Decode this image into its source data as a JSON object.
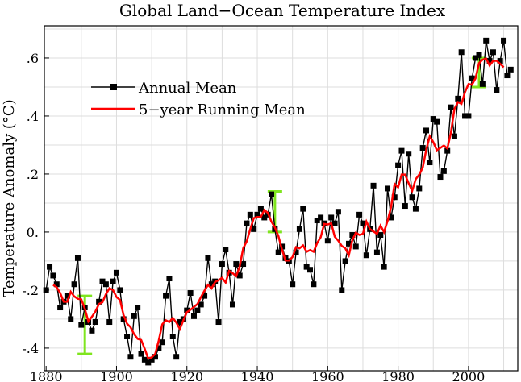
{
  "chart_data": {
    "type": "line",
    "title": "Global Land−Ocean Temperature Index",
    "xlabel": "",
    "ylabel": "Temperature Anomaly (°C)",
    "xlim": [
      1879.5,
      2014
    ],
    "ylim": [
      -0.478,
      0.711
    ],
    "grid": true,
    "legend_position": "top-left",
    "x_ticks": [
      1880,
      1900,
      1920,
      1940,
      1960,
      1980,
      2000
    ],
    "x_tick_labels": [
      "1880",
      "1900",
      "1920",
      "1940",
      "1960",
      "1980",
      "2000"
    ],
    "y_ticks": [
      0.6,
      0.4,
      0.2,
      0.0,
      -0.2,
      -0.4
    ],
    "y_tick_labels": [
      ".6",
      ".4",
      ".2",
      "0.",
      "-.2",
      "-.4"
    ],
    "series": [
      {
        "name": "Annual Mean",
        "color": "#000000",
        "marker": "square",
        "x_start": 1880,
        "values": [
          -0.2,
          -0.12,
          -0.15,
          -0.18,
          -0.26,
          -0.24,
          -0.22,
          -0.3,
          -0.18,
          -0.09,
          -0.32,
          -0.26,
          -0.31,
          -0.34,
          -0.31,
          -0.24,
          -0.17,
          -0.18,
          -0.31,
          -0.17,
          -0.14,
          -0.2,
          -0.3,
          -0.36,
          -0.43,
          -0.29,
          -0.26,
          -0.42,
          -0.44,
          -0.45,
          -0.44,
          -0.43,
          -0.4,
          -0.38,
          -0.22,
          -0.16,
          -0.36,
          -0.43,
          -0.31,
          -0.3,
          -0.27,
          -0.21,
          -0.29,
          -0.27,
          -0.25,
          -0.22,
          -0.09,
          -0.18,
          -0.17,
          -0.31,
          -0.11,
          -0.06,
          -0.14,
          -0.25,
          -0.11,
          -0.15,
          -0.11,
          0.03,
          0.06,
          0.01,
          0.06,
          0.08,
          0.05,
          0.06,
          0.13,
          0.01,
          -0.07,
          -0.05,
          -0.09,
          -0.1,
          -0.18,
          -0.07,
          0.01,
          0.08,
          -0.12,
          -0.13,
          -0.18,
          0.04,
          0.05,
          0.03,
          -0.03,
          0.05,
          0.03,
          0.07,
          -0.2,
          -0.1,
          -0.04,
          -0.01,
          -0.05,
          0.06,
          0.03,
          -0.08,
          0.01,
          0.16,
          -0.07,
          -0.01,
          -0.12,
          0.15,
          0.05,
          0.12,
          0.23,
          0.28,
          0.09,
          0.27,
          0.12,
          0.08,
          0.15,
          0.29,
          0.35,
          0.24,
          0.39,
          0.38,
          0.19,
          0.21,
          0.28,
          0.43,
          0.33,
          0.46,
          0.62,
          0.4,
          0.4,
          0.53,
          0.6,
          0.61,
          0.51,
          0.66,
          0.59,
          0.62,
          0.49,
          0.59,
          0.66,
          0.54,
          0.56
        ]
      },
      {
        "name": "5−year Running Mean",
        "color": "#ff0000",
        "window": 5
      }
    ],
    "error_bars": [
      {
        "x": 1891,
        "low": -0.42,
        "high": -0.22
      },
      {
        "x": 1945,
        "low": 0.0,
        "high": 0.14
      },
      {
        "x": 2003,
        "low": 0.5,
        "high": 0.6
      }
    ],
    "error_bar_color": "#7fe51e"
  }
}
